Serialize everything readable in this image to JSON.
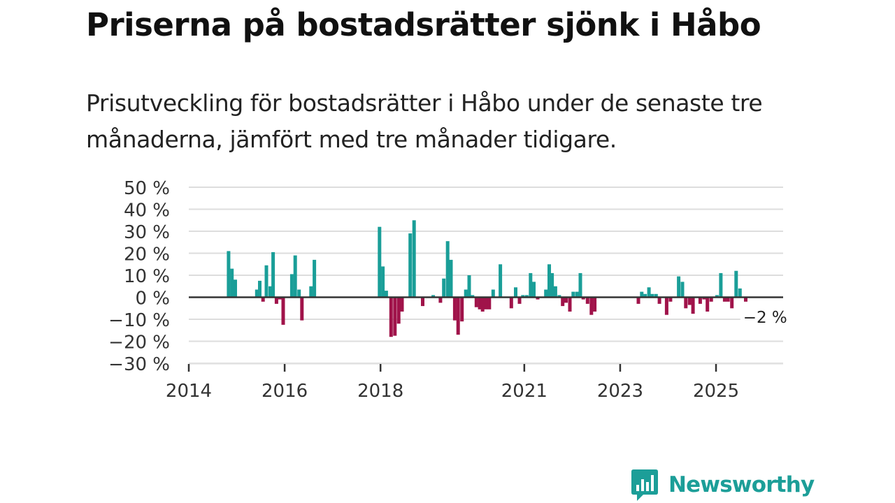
{
  "title": "Priserna på bostadsrätter sjönk i Håbo",
  "subtitle": "Prisutveckling för bostadsrätter i Håbo under de senaste tre månaderna, jämfört med tre månader tidigare.",
  "brand": {
    "name": "Newsworthy",
    "icon": "bar-chart-speech-bubble-icon"
  },
  "colors": {
    "positive": "#1a9e98",
    "negative": "#a0134a",
    "grid": "#dddddd",
    "zero_line": "#333333",
    "text": "#333333",
    "brand": "#1c9e98"
  },
  "chart_data": {
    "type": "bar",
    "title": "Priserna på bostadsrätter sjönk i Håbo",
    "xlabel": "",
    "ylabel": "",
    "unit": "%",
    "xlim": [
      2014.0,
      2026.4
    ],
    "ylim": [
      -30,
      50
    ],
    "y_ticks": [
      50,
      40,
      30,
      20,
      10,
      0,
      -10,
      -20,
      -30
    ],
    "y_tick_labels": [
      "50 %",
      "40 %",
      "30 %",
      "20 %",
      "10 %",
      "0 %",
      "−10 %",
      "−20 %",
      "−30 %"
    ],
    "x_ticks": [
      2014,
      2016,
      2018,
      2021,
      2023,
      2025
    ],
    "x_tick_labels": [
      "2014",
      "2016",
      "2018",
      "2021",
      "2023",
      "2025"
    ],
    "grid": true,
    "annotation": {
      "text": "−2 %",
      "x": 2025.71,
      "y": -2
    },
    "points": [
      {
        "x": 2014.83,
        "y": 21
      },
      {
        "x": 2014.9,
        "y": 13
      },
      {
        "x": 2014.97,
        "y": 8
      },
      {
        "x": 2015.42,
        "y": 3.5
      },
      {
        "x": 2015.48,
        "y": 7.5
      },
      {
        "x": 2015.55,
        "y": -2
      },
      {
        "x": 2015.62,
        "y": 14.5
      },
      {
        "x": 2015.7,
        "y": 5
      },
      {
        "x": 2015.76,
        "y": 20.5
      },
      {
        "x": 2015.83,
        "y": -3
      },
      {
        "x": 2015.9,
        "y": -1
      },
      {
        "x": 2015.97,
        "y": -12.5
      },
      {
        "x": 2016.15,
        "y": 10.5
      },
      {
        "x": 2016.22,
        "y": 19
      },
      {
        "x": 2016.3,
        "y": 3.5
      },
      {
        "x": 2016.36,
        "y": -10.5
      },
      {
        "x": 2016.55,
        "y": 5
      },
      {
        "x": 2016.62,
        "y": 17
      },
      {
        "x": 2017.98,
        "y": 32
      },
      {
        "x": 2018.05,
        "y": 14
      },
      {
        "x": 2018.12,
        "y": 3
      },
      {
        "x": 2018.22,
        "y": -18
      },
      {
        "x": 2018.3,
        "y": -17.5
      },
      {
        "x": 2018.38,
        "y": -12
      },
      {
        "x": 2018.45,
        "y": -6.5
      },
      {
        "x": 2018.62,
        "y": 29
      },
      {
        "x": 2018.7,
        "y": 35
      },
      {
        "x": 2018.88,
        "y": -4
      },
      {
        "x": 2019.1,
        "y": 1
      },
      {
        "x": 2019.25,
        "y": -2.5
      },
      {
        "x": 2019.32,
        "y": 8.5
      },
      {
        "x": 2019.4,
        "y": 25.5
      },
      {
        "x": 2019.47,
        "y": 17
      },
      {
        "x": 2019.55,
        "y": -10.5
      },
      {
        "x": 2019.62,
        "y": -17
      },
      {
        "x": 2019.7,
        "y": -11
      },
      {
        "x": 2019.78,
        "y": 3.5
      },
      {
        "x": 2019.85,
        "y": 10
      },
      {
        "x": 2019.92,
        "y": 1
      },
      {
        "x": 2020.0,
        "y": -4.5
      },
      {
        "x": 2020.07,
        "y": -5.5
      },
      {
        "x": 2020.13,
        "y": -6.5
      },
      {
        "x": 2020.2,
        "y": -5.5
      },
      {
        "x": 2020.27,
        "y": -5.5
      },
      {
        "x": 2020.35,
        "y": 3.5
      },
      {
        "x": 2020.5,
        "y": 15
      },
      {
        "x": 2020.73,
        "y": -5
      },
      {
        "x": 2020.82,
        "y": 4.5
      },
      {
        "x": 2020.9,
        "y": -3
      },
      {
        "x": 2020.97,
        "y": 1
      },
      {
        "x": 2021.05,
        "y": 1
      },
      {
        "x": 2021.13,
        "y": 11
      },
      {
        "x": 2021.2,
        "y": 7
      },
      {
        "x": 2021.28,
        "y": -1
      },
      {
        "x": 2021.45,
        "y": 3.5
      },
      {
        "x": 2021.52,
        "y": 15
      },
      {
        "x": 2021.58,
        "y": 11
      },
      {
        "x": 2021.65,
        "y": 5
      },
      {
        "x": 2021.73,
        "y": 1
      },
      {
        "x": 2021.8,
        "y": -4
      },
      {
        "x": 2021.87,
        "y": -2.5
      },
      {
        "x": 2021.95,
        "y": -6.5
      },
      {
        "x": 2022.02,
        "y": 2.5
      },
      {
        "x": 2022.1,
        "y": 2.5
      },
      {
        "x": 2022.17,
        "y": 11
      },
      {
        "x": 2022.23,
        "y": -1
      },
      {
        "x": 2022.32,
        "y": -3
      },
      {
        "x": 2022.4,
        "y": -8
      },
      {
        "x": 2022.47,
        "y": -6.5
      },
      {
        "x": 2023.38,
        "y": -3
      },
      {
        "x": 2023.45,
        "y": 2.5
      },
      {
        "x": 2023.52,
        "y": 1.5
      },
      {
        "x": 2023.6,
        "y": 4.5
      },
      {
        "x": 2023.67,
        "y": 1.5
      },
      {
        "x": 2023.75,
        "y": 1.5
      },
      {
        "x": 2023.82,
        "y": -3
      },
      {
        "x": 2023.97,
        "y": -8
      },
      {
        "x": 2024.05,
        "y": -2
      },
      {
        "x": 2024.22,
        "y": 9.5
      },
      {
        "x": 2024.3,
        "y": 7
      },
      {
        "x": 2024.37,
        "y": -5
      },
      {
        "x": 2024.45,
        "y": -3.5
      },
      {
        "x": 2024.52,
        "y": -7.5
      },
      {
        "x": 2024.67,
        "y": -3
      },
      {
        "x": 2024.75,
        "y": -1
      },
      {
        "x": 2024.82,
        "y": -6.5
      },
      {
        "x": 2024.9,
        "y": -2
      },
      {
        "x": 2025.02,
        "y": 1
      },
      {
        "x": 2025.1,
        "y": 11
      },
      {
        "x": 2025.18,
        "y": -2
      },
      {
        "x": 2025.25,
        "y": -2
      },
      {
        "x": 2025.33,
        "y": -5
      },
      {
        "x": 2025.42,
        "y": 12
      },
      {
        "x": 2025.5,
        "y": 4
      },
      {
        "x": 2025.62,
        "y": -2
      }
    ]
  }
}
